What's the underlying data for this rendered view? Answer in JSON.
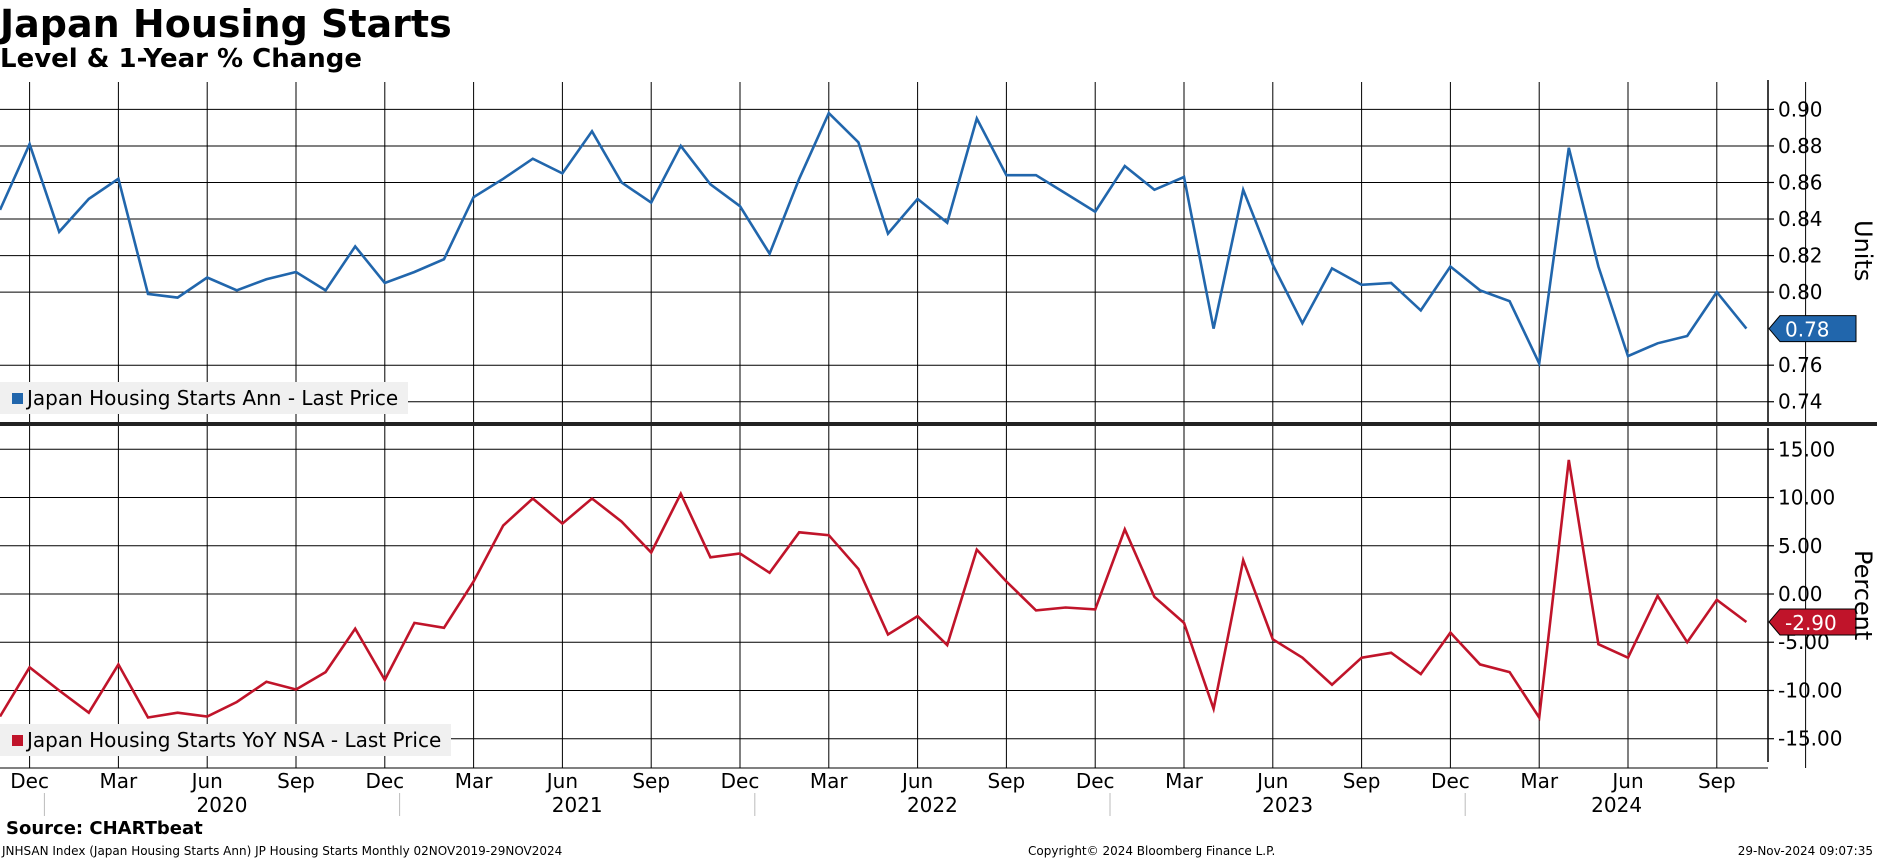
{
  "header": {
    "title": "Japan Housing Starts",
    "subtitle": "Level & 1-Year % Change"
  },
  "footer": {
    "source": "Source: CHARTbeat",
    "description": "JNHSAN Index (Japan Housing Starts Ann) JP Housing Starts  Monthly 02NOV2019-29NOV2024",
    "copyright": "Copyright© 2024 Bloomberg Finance L.P.",
    "date": "29-Nov-2024 09:07:35"
  },
  "colors": {
    "level": "#2166ac",
    "yoy": "#c0142a",
    "grid": "#000000",
    "legend_bg": "#f0f0f0"
  },
  "chart_data": [
    {
      "type": "line",
      "ylabel": "Units",
      "ylim": [
        0.73,
        0.915
      ],
      "yticks": [
        "0.90",
        "0.88",
        "0.86",
        "0.84",
        "0.82",
        "0.80",
        "0.76",
        "0.74"
      ],
      "ytick_values": [
        0.9,
        0.88,
        0.86,
        0.84,
        0.82,
        0.8,
        0.76,
        0.74
      ],
      "last_value_label": "0.78",
      "legend": "Japan Housing Starts Ann - Last Price",
      "series": [
        {
          "name": "Japan Housing Starts Ann - Last Price",
          "x": [
            "2019-11",
            "2019-12",
            "2020-01",
            "2020-02",
            "2020-03",
            "2020-04",
            "2020-05",
            "2020-06",
            "2020-07",
            "2020-08",
            "2020-09",
            "2020-10",
            "2020-11",
            "2020-12",
            "2021-01",
            "2021-02",
            "2021-03",
            "2021-04",
            "2021-05",
            "2021-06",
            "2021-07",
            "2021-08",
            "2021-09",
            "2021-10",
            "2021-11",
            "2021-12",
            "2022-01",
            "2022-02",
            "2022-03",
            "2022-04",
            "2022-05",
            "2022-06",
            "2022-07",
            "2022-08",
            "2022-09",
            "2022-10",
            "2022-11",
            "2022-12",
            "2023-01",
            "2023-02",
            "2023-03",
            "2023-04",
            "2023-05",
            "2023-06",
            "2023-07",
            "2023-08",
            "2023-09",
            "2023-10",
            "2023-11",
            "2023-12",
            "2024-01",
            "2024-02",
            "2024-03",
            "2024-04",
            "2024-05",
            "2024-06",
            "2024-07",
            "2024-08",
            "2024-09",
            "2024-10"
          ],
          "values": [
            0.845,
            0.881,
            0.833,
            0.851,
            0.862,
            0.799,
            0.797,
            0.808,
            0.801,
            0.807,
            0.811,
            0.801,
            0.825,
            0.805,
            0.811,
            0.818,
            0.852,
            0.862,
            0.873,
            0.865,
            0.888,
            0.86,
            0.849,
            0.88,
            0.859,
            0.847,
            0.821,
            0.862,
            0.898,
            0.882,
            0.832,
            0.851,
            0.838,
            0.895,
            0.864,
            0.864,
            0.854,
            0.844,
            0.869,
            0.856,
            0.863,
            0.78,
            0.856,
            0.815,
            0.783,
            0.813,
            0.804,
            0.805,
            0.79,
            0.814,
            0.801,
            0.795,
            0.761,
            0.879,
            0.814,
            0.765,
            0.772,
            0.776,
            0.8,
            0.78
          ]
        }
      ]
    },
    {
      "type": "line",
      "ylabel": "Percent",
      "ylim": [
        -17,
        17
      ],
      "yticks": [
        "15.00",
        "10.00",
        "5.00",
        "0.00",
        "-5.00",
        "-10.00",
        "-15.00"
      ],
      "ytick_values": [
        15,
        10,
        5,
        0,
        -5,
        -10,
        -15
      ],
      "last_value_label": "-2.90",
      "legend": "Japan Housing Starts YoY NSA - Last Price",
      "series": [
        {
          "name": "Japan Housing Starts YoY NSA - Last Price",
          "x": [
            "2019-11",
            "2019-12",
            "2020-01",
            "2020-02",
            "2020-03",
            "2020-04",
            "2020-05",
            "2020-06",
            "2020-07",
            "2020-08",
            "2020-09",
            "2020-10",
            "2020-11",
            "2020-12",
            "2021-01",
            "2021-02",
            "2021-03",
            "2021-04",
            "2021-05",
            "2021-06",
            "2021-07",
            "2021-08",
            "2021-09",
            "2021-10",
            "2021-11",
            "2021-12",
            "2022-01",
            "2022-02",
            "2022-03",
            "2022-04",
            "2022-05",
            "2022-06",
            "2022-07",
            "2022-08",
            "2022-09",
            "2022-10",
            "2022-11",
            "2022-12",
            "2023-01",
            "2023-02",
            "2023-03",
            "2023-04",
            "2023-05",
            "2023-06",
            "2023-07",
            "2023-08",
            "2023-09",
            "2023-10",
            "2023-11",
            "2023-12",
            "2024-01",
            "2024-02",
            "2024-03",
            "2024-04",
            "2024-05",
            "2024-06",
            "2024-07",
            "2024-08",
            "2024-09",
            "2024-10"
          ],
          "values": [
            -12.7,
            -7.6,
            -10.0,
            -12.3,
            -7.3,
            -12.8,
            -12.3,
            -12.7,
            -11.2,
            -9.1,
            -9.9,
            -8.1,
            -3.6,
            -8.9,
            -3.0,
            -3.5,
            1.3,
            7.1,
            9.9,
            7.3,
            9.9,
            7.5,
            4.3,
            10.4,
            3.8,
            4.2,
            2.2,
            6.4,
            6.1,
            2.6,
            -4.2,
            -2.3,
            -5.3,
            4.6,
            1.3,
            -1.7,
            -1.4,
            -1.6,
            6.7,
            -0.3,
            -3.0,
            -11.9,
            3.5,
            -4.7,
            -6.6,
            -9.4,
            -6.6,
            -6.1,
            -8.3,
            -4.0,
            -7.3,
            -8.1,
            -12.8,
            13.9,
            -5.2,
            -6.6,
            -0.2,
            -5.0,
            -0.6,
            -2.9
          ]
        }
      ]
    }
  ],
  "xaxis": {
    "month_labels": [
      "Dec",
      "Mar",
      "Jun",
      "Sep",
      "Dec",
      "Mar",
      "Jun",
      "Sep",
      "Dec",
      "Mar",
      "Jun",
      "Sep",
      "Dec",
      "Mar",
      "Jun",
      "Sep",
      "Dec",
      "Mar",
      "Jun",
      "Sep"
    ],
    "year_labels": [
      "2020",
      "2021",
      "2022",
      "2023",
      "2024"
    ]
  }
}
